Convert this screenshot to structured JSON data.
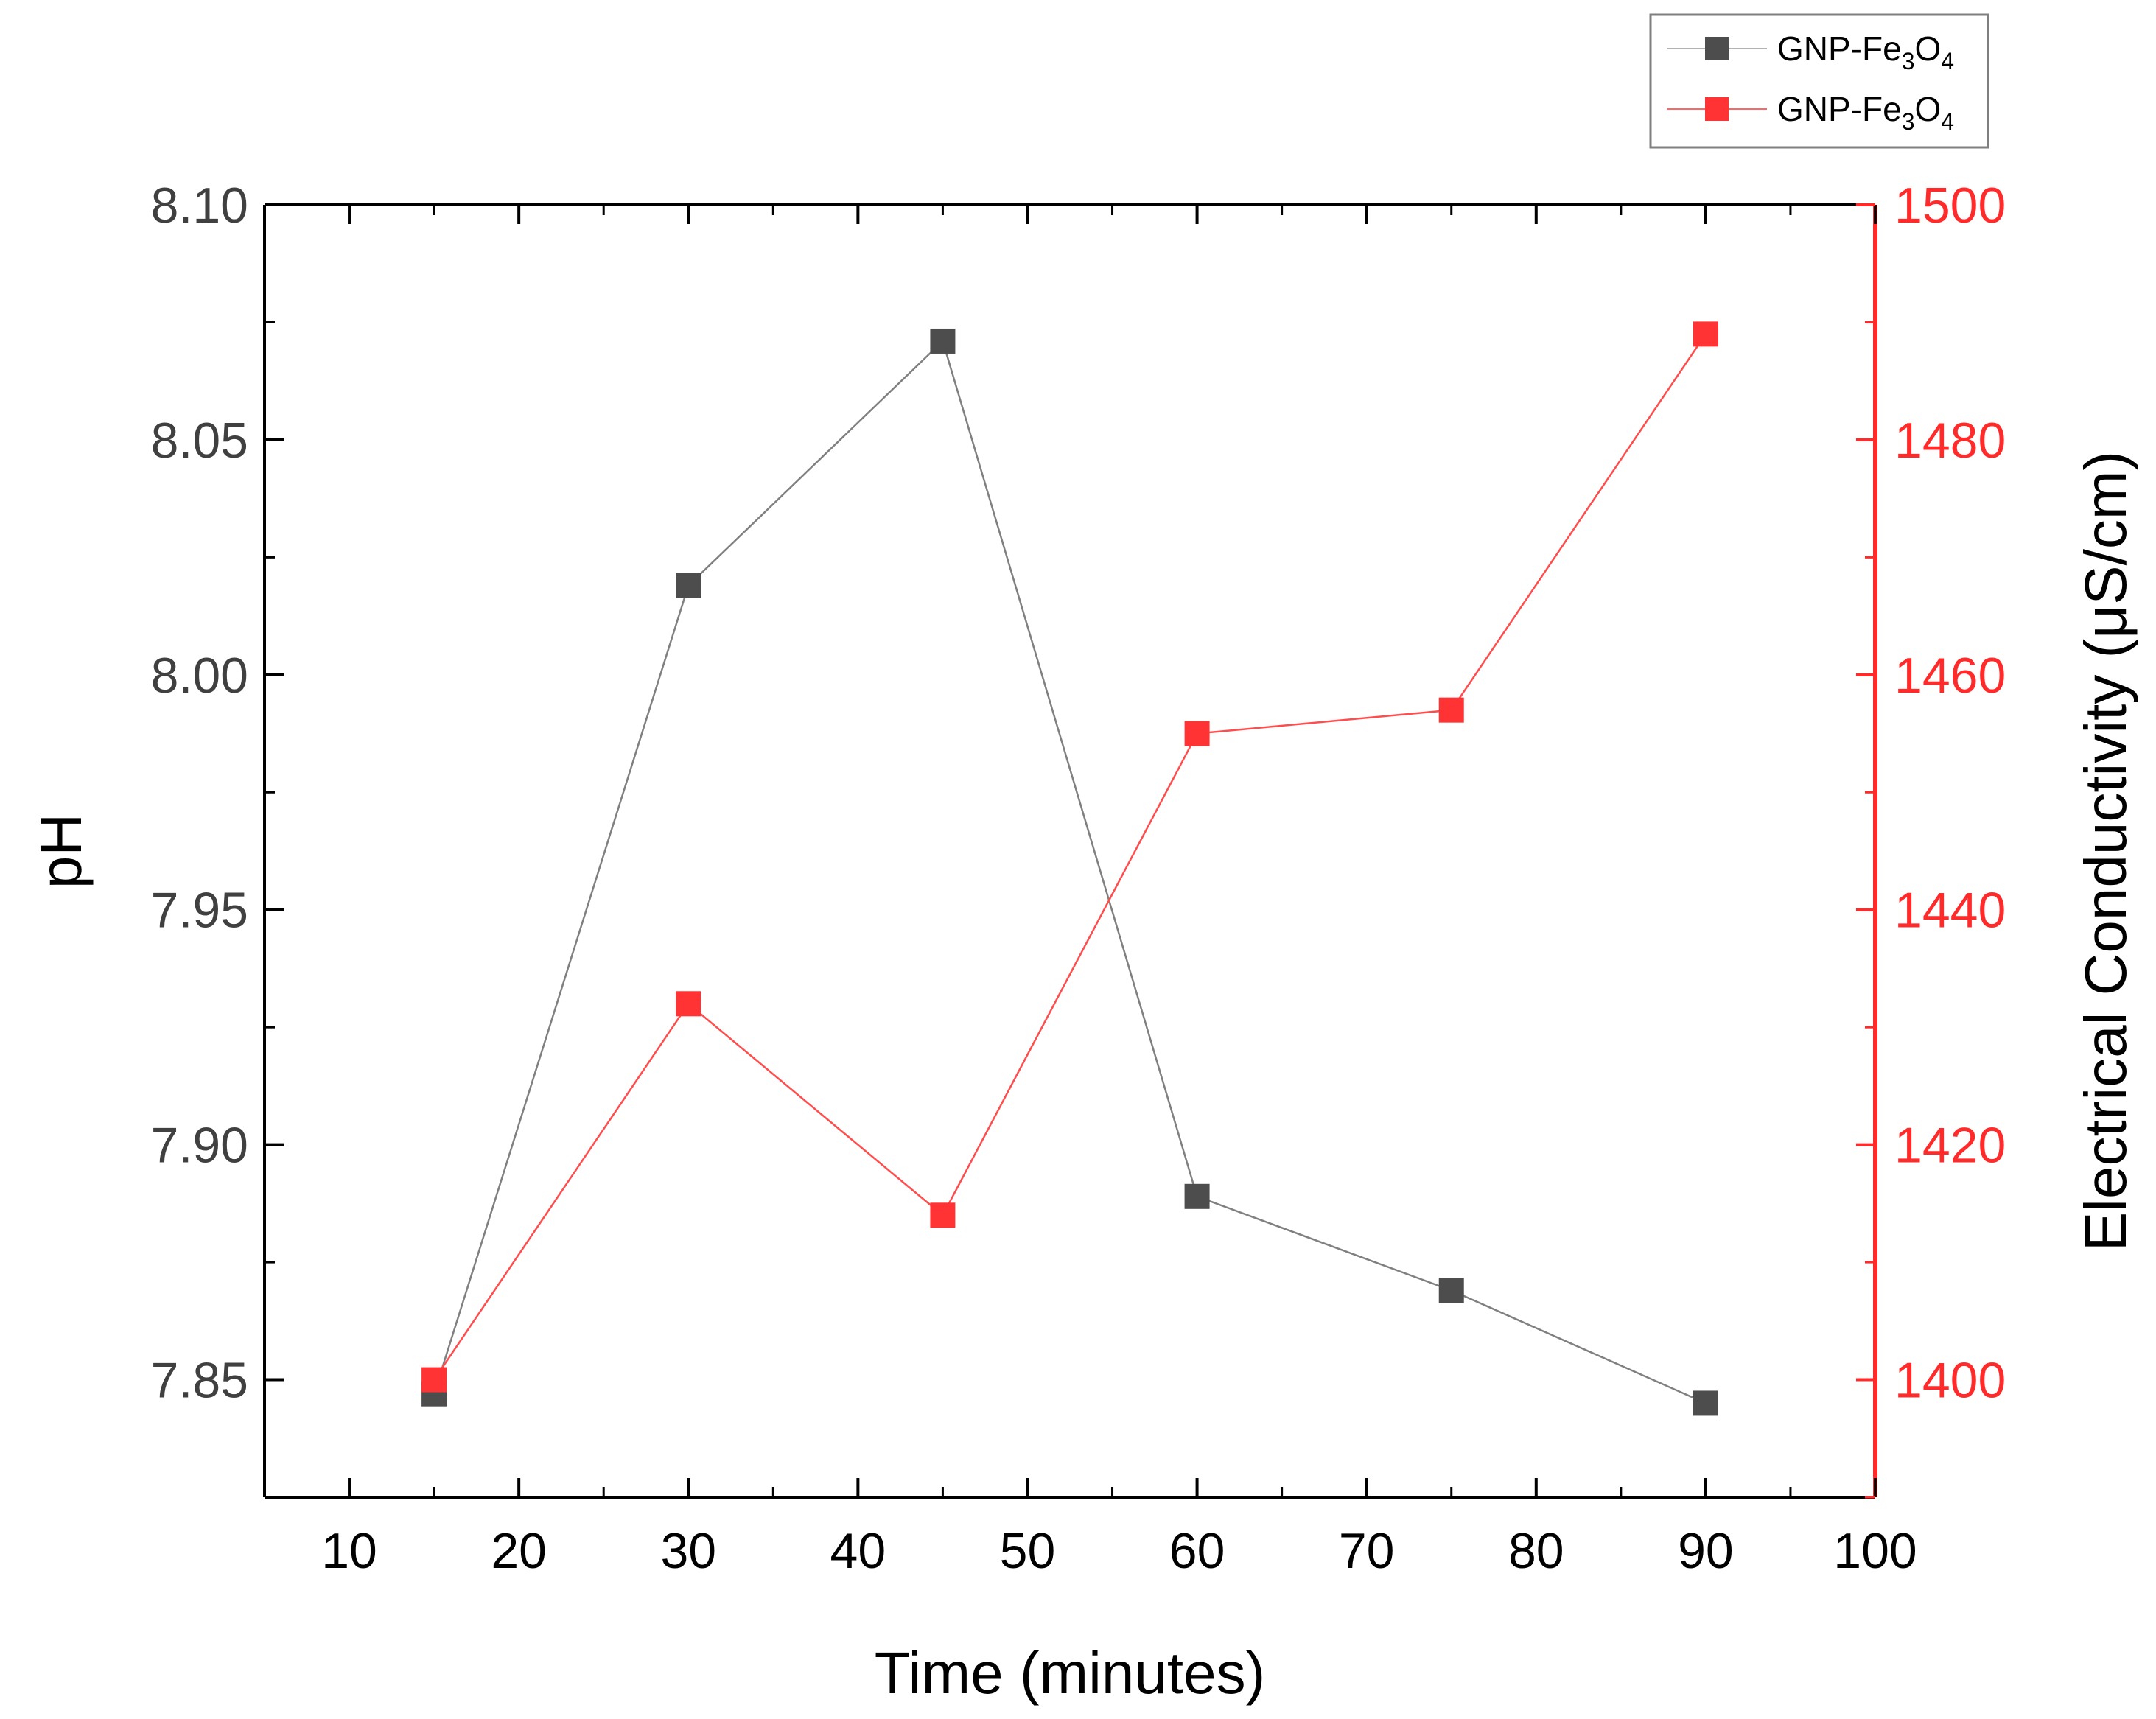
{
  "chart_data": {
    "type": "line",
    "title": "",
    "xlabel": "Time (minutes)",
    "ylabel": "pH",
    "y2label": "Electrical Conductivity (μS/cm)",
    "xlim": [
      5,
      100
    ],
    "ylim": [
      7.825,
      8.1
    ],
    "y2lim": [
      1390,
      1500
    ],
    "x_ticks": [
      10,
      20,
      30,
      40,
      50,
      60,
      70,
      80,
      90,
      100
    ],
    "y_ticks": [
      "7.85",
      "7.90",
      "7.95",
      "8.00",
      "8.05",
      "8.10"
    ],
    "y2_ticks": [
      1400,
      1420,
      1440,
      1460,
      1480,
      1500
    ],
    "grid": false,
    "legend_position": "top-right, outside plot",
    "series": [
      {
        "name": "GNP-Fe3O4",
        "legend_base": "GNP-Fe",
        "legend_sub1": "3",
        "legend_mid": "O",
        "legend_sub2": "4",
        "axis": "left",
        "color": "#4d4d4d",
        "line_color": "#808080",
        "marker": "square",
        "x": [
          15,
          30,
          45,
          60,
          75,
          90
        ],
        "values": [
          7.847,
          8.019,
          8.071,
          7.889,
          7.869,
          7.845
        ]
      },
      {
        "name": "GNP-Fe3O4",
        "legend_base": "GNP-Fe",
        "legend_sub1": "3",
        "legend_mid": "O",
        "legend_sub2": "4",
        "axis": "right",
        "color": "#ff3333",
        "line_color": "#ff4d4d",
        "marker": "square",
        "x": [
          15,
          30,
          45,
          60,
          75,
          90
        ],
        "values": [
          1400,
          1432,
          1414,
          1455,
          1457,
          1489
        ]
      }
    ],
    "colors": {
      "axis_left": "#000000",
      "axis_right": "#ff2a2a",
      "tick_label_left": "#404040",
      "tick_label_right": "#ff2a2a"
    }
  }
}
